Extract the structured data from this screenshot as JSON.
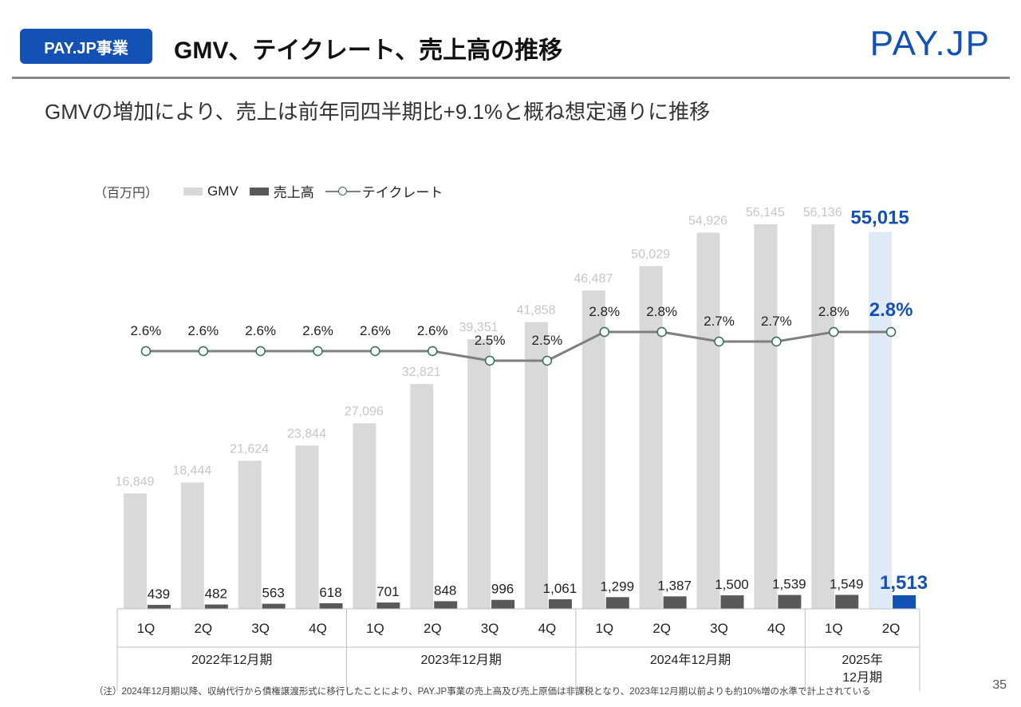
{
  "header": {
    "badge": "PAY.JP事業",
    "title": "GMV、テイクレート、売上高の推移",
    "logo_left": "PAY.",
    "logo_right": "JP"
  },
  "subtitle": "GMVの増加により、売上は前年同四半期比+9.1%と概ね想定通りに推移",
  "footnote": "（注）2024年12月期以降、収納代行から債権譲渡形式に移行したことにより、PAY.JP事業の売上高及び売上原価は非課税となり、2023年12月期以前よりも約10%増の水準で計上されている",
  "page_number": "35",
  "chart_data": {
    "type": "bar",
    "unit_label": "（百万円）",
    "categories": [
      "1Q",
      "2Q",
      "3Q",
      "4Q",
      "1Q",
      "2Q",
      "3Q",
      "4Q",
      "1Q",
      "2Q",
      "3Q",
      "4Q",
      "1Q",
      "2Q"
    ],
    "groups": [
      {
        "label": "2022年12月期",
        "start": 0,
        "count": 4
      },
      {
        "label": "2023年12月期",
        "start": 4,
        "count": 4
      },
      {
        "label": "2024年12月期",
        "start": 8,
        "count": 4
      },
      {
        "label": "2025年\n12月期",
        "start": 12,
        "count": 2
      }
    ],
    "series": [
      {
        "name": "GMV",
        "kind": "bar",
        "values": [
          16849,
          18444,
          21624,
          23844,
          27096,
          32821,
          39351,
          41858,
          46487,
          50029,
          54926,
          56145,
          56136,
          55015
        ],
        "labels": [
          "16,849",
          "18,444",
          "21,624",
          "23,844",
          "27,096",
          "32,821",
          "39,351",
          "41,858",
          "46,487",
          "50,029",
          "54,926",
          "56,145",
          "56,136",
          "55,015"
        ]
      },
      {
        "name": "売上高",
        "kind": "bar",
        "values": [
          439,
          482,
          563,
          618,
          701,
          848,
          996,
          1061,
          1299,
          1387,
          1500,
          1539,
          1549,
          1513
        ],
        "labels": [
          "439",
          "482",
          "563",
          "618",
          "701",
          "848",
          "996",
          "1,061",
          "1,299",
          "1,387",
          "1,500",
          "1,539",
          "1,549",
          "1,513"
        ]
      },
      {
        "name": "テイクレート",
        "kind": "line",
        "values": [
          2.6,
          2.6,
          2.6,
          2.6,
          2.6,
          2.6,
          2.5,
          2.5,
          2.8,
          2.8,
          2.7,
          2.7,
          2.8,
          2.8
        ],
        "labels": [
          "2.6%",
          "2.6%",
          "2.6%",
          "2.6%",
          "2.6%",
          "2.6%",
          "2.5%",
          "2.5%",
          "2.8%",
          "2.8%",
          "2.7%",
          "2.7%",
          "2.8%",
          "2.8%"
        ]
      }
    ],
    "highlight_index": 13,
    "colors": {
      "gmv": "#d9d9d9",
      "gmv_highlight": "#dfe9f8",
      "revenue": "#595959",
      "revenue_highlight": "#1451b4",
      "line": "#7f7f7f",
      "marker_stroke": "#2e6e5a",
      "highlight_text": "#1451b4",
      "gmv_label": "#c6c6c6"
    }
  }
}
